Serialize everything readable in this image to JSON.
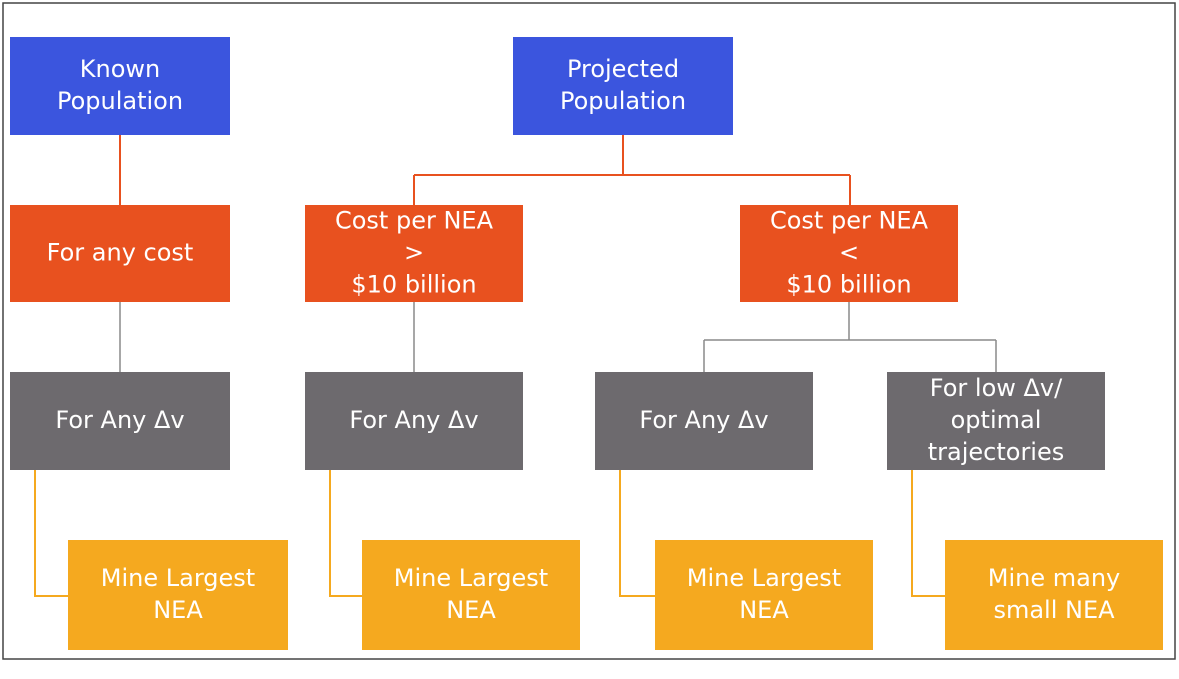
{
  "nodes": [
    {
      "lines": [
        "Known",
        "Population"
      ]
    },
    {
      "lines": [
        "Projected",
        "Population"
      ]
    },
    {
      "lines": [
        "For any cost"
      ]
    },
    {
      "lines": [
        "Cost per NEA",
        ">",
        "$10 billion"
      ]
    },
    {
      "lines": [
        "Cost per NEA",
        "<",
        "$10 billion"
      ]
    },
    {
      "lines": [
        "For Any Δv"
      ]
    },
    {
      "lines": [
        "For Any Δv"
      ]
    },
    {
      "lines": [
        "For Any Δv"
      ]
    },
    {
      "lines": [
        "For low Δv/",
        "optimal",
        "trajectories"
      ]
    },
    {
      "lines": [
        "Mine Largest",
        "NEA"
      ]
    },
    {
      "lines": [
        "Mine Largest",
        "NEA"
      ]
    },
    {
      "lines": [
        "Mine Largest",
        "NEA"
      ]
    },
    {
      "lines": [
        "Mine many",
        "small NEA"
      ]
    }
  ]
}
